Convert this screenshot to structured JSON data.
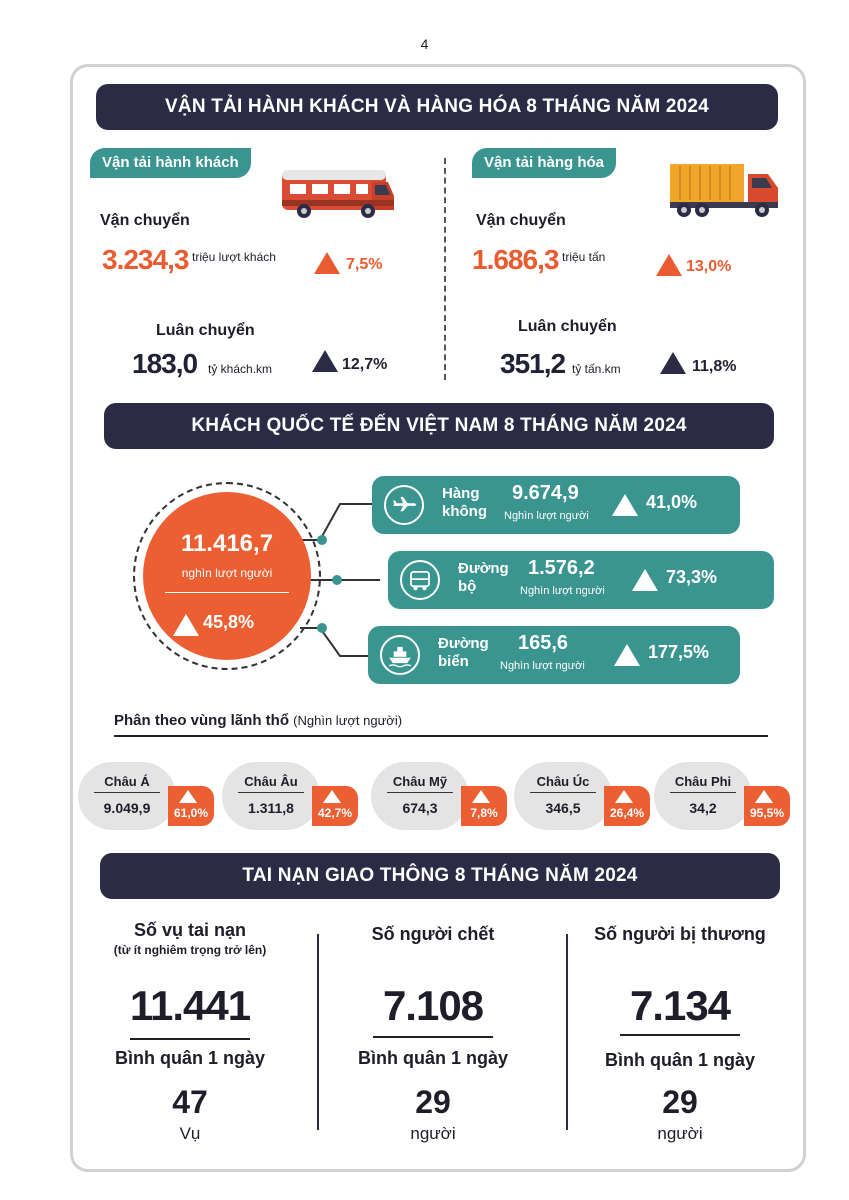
{
  "page_number": "4",
  "section1": {
    "title": "VẬN TẢI HÀNH KHÁCH VÀ HÀNG HÓA 8 THÁNG NĂM 2024",
    "passenger": {
      "tag": "Vận tải hành khách",
      "icon": "bus-icon",
      "transport_label": "Vận chuyển",
      "transport_value": "3.234,3",
      "transport_unit": "triệu lượt khách",
      "transport_pct": "7,5%",
      "rotation_label": "Luân chuyển",
      "rotation_value": "183,0",
      "rotation_unit": "tỷ khách.km",
      "rotation_pct": "12,7%"
    },
    "freight": {
      "tag": "Vận tải hàng hóa",
      "icon": "truck-icon",
      "transport_label": "Vận chuyển",
      "transport_value": "1.686,3",
      "transport_unit": "triệu tấn",
      "transport_pct": "13,0%",
      "rotation_label": "Luân chuyển",
      "rotation_value": "351,2",
      "rotation_unit": "tỷ tấn.km",
      "rotation_pct": "11,8%"
    }
  },
  "section2": {
    "title": "KHÁCH QUỐC TẾ ĐẾN VIỆT NAM 8 THÁNG NĂM 2024",
    "total_value": "11.416,7",
    "total_unit": "nghìn lượt người",
    "total_pct": "45,8%",
    "modes": [
      {
        "name_1": "Hàng",
        "name_2": "không",
        "value": "9.674,9",
        "unit": "Nghìn lượt người",
        "pct": "41,0%"
      },
      {
        "name_1": "Đường",
        "name_2": "bộ",
        "value": "1.576,2",
        "unit": "Nghìn lượt người",
        "pct": "73,3%"
      },
      {
        "name_1": "Đường",
        "name_2": "biển",
        "value": "165,6",
        "unit": "Nghìn lượt người",
        "pct": "177,5%"
      }
    ],
    "region_title": "Phân theo vùng lãnh thổ",
    "region_unit": "(Nghìn lượt người)",
    "regions": [
      {
        "name": "Châu Á",
        "value": "9.049,9",
        "pct": "61,0%"
      },
      {
        "name": "Châu Âu",
        "value": "1.311,8",
        "pct": "42,7%"
      },
      {
        "name": "Châu Mỹ",
        "value": "674,3",
        "pct": "7,8%"
      },
      {
        "name": "Châu Úc",
        "value": "346,5",
        "pct": "26,4%"
      },
      {
        "name": "Châu Phi",
        "value": "34,2",
        "pct": "95,5%"
      }
    ]
  },
  "section3": {
    "title": "TAI NẠN GIAO THÔNG 8 THÁNG NĂM 2024",
    "columns": [
      {
        "heading": "Số vụ tai nạn",
        "subheading": "(từ ít nghiêm trọng trở lên)",
        "value": "11.441",
        "avg_label": "Bình quân 1 ngày",
        "avg_value": "47",
        "avg_unit": "Vụ"
      },
      {
        "heading": "Số người chết",
        "subheading": "",
        "value": "7.108",
        "avg_label": "Bình quân 1 ngày",
        "avg_value": "29",
        "avg_unit": "người"
      },
      {
        "heading": "Số người bị thương",
        "subheading": "",
        "value": "7.134",
        "avg_label": "Bình quân 1 ngày",
        "avg_value": "29",
        "avg_unit": "người"
      }
    ]
  },
  "colors": {
    "navy": "#2c2b45",
    "teal": "#3a9590",
    "orange": "#e95c32",
    "gray": "#e3e4e3"
  }
}
